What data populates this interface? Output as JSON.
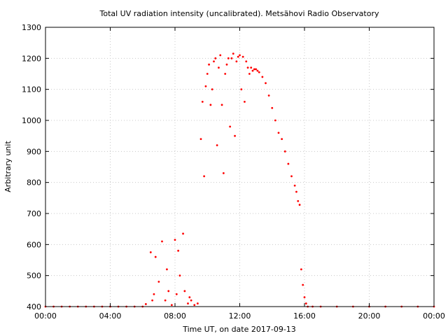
{
  "chart_data": {
    "type": "scatter",
    "title": "Total UV radiation intensity (uncalibrated). Metsähovi Radio Observatory",
    "xlabel": "Time UT, on date 2017-09-13",
    "ylabel": "Arbitrary unit",
    "xlim": [
      0,
      24
    ],
    "ylim": [
      400,
      1300
    ],
    "xticks": [
      0,
      4,
      8,
      12,
      16,
      20,
      24
    ],
    "xtick_labels": [
      "00:00",
      "04:00",
      "08:00",
      "12:00",
      "16:00",
      "20:00",
      "00:00"
    ],
    "yticks": [
      400,
      500,
      600,
      700,
      800,
      900,
      1000,
      1100,
      1200,
      1300
    ],
    "ytick_labels": [
      "400",
      "500",
      "600",
      "700",
      "800",
      "900",
      "1000",
      "1100",
      "1200",
      "1300"
    ],
    "grid": true,
    "legend": "none",
    "marker_color": "#ff0000",
    "series": [
      {
        "x": [
          0.0,
          0.5,
          1.0,
          1.5,
          2.0,
          2.5,
          3.0,
          3.5,
          4.0,
          4.5,
          5.0,
          5.5,
          6.0,
          6.2,
          6.5,
          6.6,
          6.7,
          6.8,
          7.0,
          7.2,
          7.4,
          7.5,
          7.6,
          7.8,
          8.0,
          8.1,
          8.2,
          8.3,
          8.5,
          8.6,
          8.8,
          8.9,
          9.0,
          9.2,
          9.4,
          9.6,
          9.7,
          9.8,
          9.9,
          10.0,
          10.1,
          10.2,
          10.3,
          10.4,
          10.5,
          10.6,
          10.7,
          10.8,
          10.9,
          11.0,
          11.1,
          11.2,
          11.3,
          11.4,
          11.5,
          11.6,
          11.7,
          11.8,
          11.9,
          12.0,
          12.1,
          12.2,
          12.3,
          12.4,
          12.5,
          12.6,
          12.7,
          12.8,
          12.9,
          13.0,
          13.1,
          13.2,
          13.4,
          13.6,
          13.8,
          14.0,
          14.2,
          14.4,
          14.6,
          14.8,
          15.0,
          15.2,
          15.4,
          15.5,
          15.6,
          15.7,
          15.8,
          15.9,
          16.0,
          16.1,
          16.2,
          16.5,
          17.0,
          18.0,
          19.0,
          20.0,
          21.0,
          22.0,
          23.0,
          24.0
        ],
        "y": [
          400,
          400,
          400,
          400,
          400,
          400,
          400,
          400,
          400,
          400,
          400,
          400,
          400,
          408,
          575,
          420,
          440,
          560,
          480,
          610,
          420,
          520,
          450,
          405,
          615,
          440,
          580,
          500,
          635,
          450,
          410,
          430,
          420,
          405,
          410,
          940,
          1060,
          820,
          1110,
          1150,
          1180,
          1050,
          1100,
          1190,
          1200,
          920,
          1170,
          1210,
          1050,
          830,
          1150,
          1180,
          1200,
          980,
          1200,
          1215,
          950,
          1190,
          1205,
          1210,
          1100,
          1205,
          1060,
          1190,
          1170,
          1150,
          1170,
          1160,
          1165,
          1165,
          1160,
          1155,
          1140,
          1120,
          1080,
          1040,
          1000,
          960,
          940,
          900,
          860,
          820,
          790,
          770,
          740,
          728,
          520,
          470,
          430,
          410,
          400,
          400,
          400,
          400,
          400,
          400,
          400,
          400,
          400,
          400
        ]
      }
    ]
  }
}
